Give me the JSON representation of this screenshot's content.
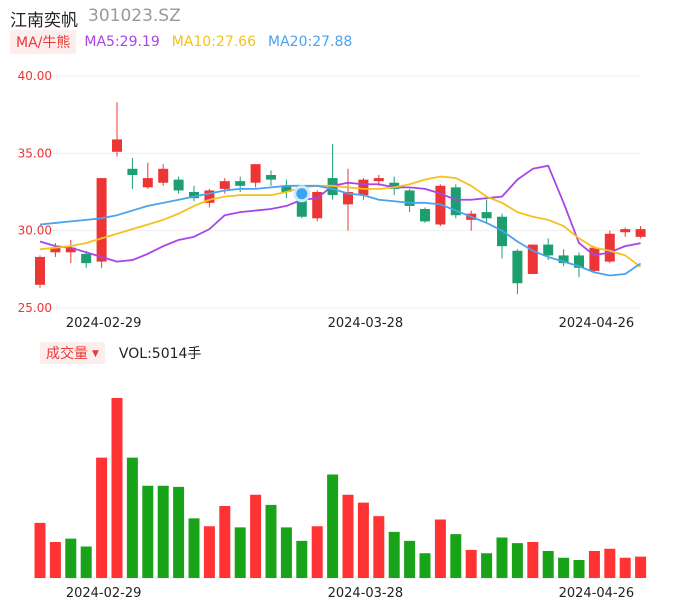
{
  "header": {
    "name": "江南奕帆",
    "code": "301023.SZ"
  },
  "ma_bar": {
    "button": "MA/牛熊",
    "ma5": "MA5:29.19",
    "ma10": "MA10:27.66",
    "ma20": "MA20:27.88"
  },
  "volume_bar": {
    "button": "成交量",
    "caret": "▼",
    "label": "VOL:5014手"
  },
  "colors": {
    "up": "#ee3535",
    "down": "#1d9e6f",
    "vol_up": "#ff3333",
    "vol_down": "#19a319",
    "ma5": "#a845e8",
    "ma10": "#f5c11a",
    "ma20": "#4aa3ee",
    "grid": "#eeeeee"
  },
  "chart_data": [
    {
      "type": "candlestick",
      "ylim": [
        25,
        40
      ],
      "yticks": [
        "40.00",
        "35.00",
        "30.00",
        "25.00"
      ],
      "x_tick_labels": [
        {
          "index": 4,
          "label": "2024-02-29"
        },
        {
          "index": 21,
          "label": "2024-03-28"
        },
        {
          "index": 36,
          "label": "2024-04-26"
        }
      ],
      "marker": {
        "index": 17,
        "icon": "bull-marker-icon"
      },
      "candles": [
        {
          "o": 26.5,
          "c": 28.3,
          "h": 28.4,
          "l": 26.3
        },
        {
          "o": 28.6,
          "c": 28.9,
          "h": 29.2,
          "l": 28.3
        },
        {
          "o": 28.6,
          "c": 28.9,
          "h": 29.4,
          "l": 27.9
        },
        {
          "o": 28.5,
          "c": 27.9,
          "h": 28.7,
          "l": 27.6
        },
        {
          "o": 28.0,
          "c": 33.4,
          "h": 33.4,
          "l": 27.6
        },
        {
          "o": 35.1,
          "c": 35.9,
          "h": 38.3,
          "l": 34.8
        },
        {
          "o": 34.0,
          "c": 33.6,
          "h": 34.7,
          "l": 32.7
        },
        {
          "o": 32.8,
          "c": 33.4,
          "h": 34.4,
          "l": 32.7
        },
        {
          "o": 33.1,
          "c": 34.0,
          "h": 34.3,
          "l": 32.9
        },
        {
          "o": 33.3,
          "c": 32.6,
          "h": 33.5,
          "l": 32.4
        },
        {
          "o": 32.5,
          "c": 32.1,
          "h": 32.9,
          "l": 31.9
        },
        {
          "o": 31.8,
          "c": 32.6,
          "h": 32.7,
          "l": 31.5
        },
        {
          "o": 32.7,
          "c": 33.2,
          "h": 33.4,
          "l": 32.4
        },
        {
          "o": 33.2,
          "c": 32.9,
          "h": 33.5,
          "l": 32.5
        },
        {
          "o": 33.1,
          "c": 34.3,
          "h": 34.3,
          "l": 32.8
        },
        {
          "o": 33.6,
          "c": 33.3,
          "h": 33.9,
          "l": 32.9
        },
        {
          "o": 32.9,
          "c": 32.5,
          "h": 33.3,
          "l": 32.1
        },
        {
          "o": 32.0,
          "c": 30.9,
          "h": 32.2,
          "l": 30.8
        },
        {
          "o": 30.8,
          "c": 32.5,
          "h": 32.6,
          "l": 30.6
        },
        {
          "o": 33.4,
          "c": 32.3,
          "h": 35.6,
          "l": 32.0
        },
        {
          "o": 31.7,
          "c": 32.5,
          "h": 34.0,
          "l": 30.0
        },
        {
          "o": 32.3,
          "c": 33.3,
          "h": 33.4,
          "l": 32.0
        },
        {
          "o": 33.2,
          "c": 33.4,
          "h": 33.6,
          "l": 32.9
        },
        {
          "o": 33.1,
          "c": 32.7,
          "h": 33.5,
          "l": 32.3
        },
        {
          "o": 32.6,
          "c": 31.6,
          "h": 32.7,
          "l": 31.2
        },
        {
          "o": 31.4,
          "c": 30.6,
          "h": 31.5,
          "l": 30.5
        },
        {
          "o": 30.4,
          "c": 32.9,
          "h": 33.0,
          "l": 30.3
        },
        {
          "o": 32.8,
          "c": 31.0,
          "h": 33.0,
          "l": 30.8
        },
        {
          "o": 30.7,
          "c": 31.1,
          "h": 31.3,
          "l": 30.0
        },
        {
          "o": 31.2,
          "c": 30.8,
          "h": 32.0,
          "l": 30.5
        },
        {
          "o": 30.9,
          "c": 29.0,
          "h": 31.1,
          "l": 28.2
        },
        {
          "o": 28.7,
          "c": 26.6,
          "h": 28.8,
          "l": 25.9
        },
        {
          "o": 27.2,
          "c": 29.1,
          "h": 29.1,
          "l": 27.2
        },
        {
          "o": 29.1,
          "c": 28.4,
          "h": 29.5,
          "l": 28.1
        },
        {
          "o": 28.4,
          "c": 27.9,
          "h": 28.8,
          "l": 27.7
        },
        {
          "o": 28.4,
          "c": 27.6,
          "h": 28.6,
          "l": 27.0
        },
        {
          "o": 27.4,
          "c": 28.9,
          "h": 29.0,
          "l": 27.3
        },
        {
          "o": 28.0,
          "c": 29.8,
          "h": 30.0,
          "l": 27.9
        },
        {
          "o": 29.9,
          "c": 30.1,
          "h": 30.2,
          "l": 29.6
        },
        {
          "o": 29.6,
          "c": 30.1,
          "h": 30.3,
          "l": 29.5
        }
      ],
      "series": [
        {
          "name": "MA5",
          "values": [
            29.3,
            29.0,
            28.9,
            28.6,
            28.3,
            28.0,
            28.1,
            28.5,
            29.0,
            29.4,
            29.6,
            30.1,
            31.0,
            31.2,
            31.3,
            31.4,
            31.6,
            32.0,
            32.1,
            32.9,
            33.1,
            33.0,
            33.0,
            32.8,
            32.8,
            32.7,
            32.4,
            32.0,
            32.0,
            32.1,
            32.2,
            33.3,
            34.0,
            34.2,
            31.8,
            29.2,
            28.4,
            28.6,
            29.0,
            29.19
          ]
        },
        {
          "name": "MA10",
          "values": [
            28.8,
            28.9,
            29.0,
            29.2,
            29.5,
            29.8,
            30.1,
            30.4,
            30.7,
            31.1,
            31.6,
            32.0,
            32.2,
            32.3,
            32.3,
            32.3,
            32.5,
            32.8,
            32.9,
            32.9,
            32.8,
            32.7,
            32.7,
            32.8,
            33.0,
            33.3,
            33.5,
            33.4,
            32.9,
            32.2,
            31.8,
            31.2,
            30.9,
            30.7,
            30.3,
            29.5,
            28.9,
            28.7,
            28.4,
            27.66
          ]
        },
        {
          "name": "MA20",
          "values": [
            30.4,
            30.5,
            30.6,
            30.7,
            30.8,
            31.0,
            31.3,
            31.6,
            31.8,
            32.0,
            32.2,
            32.4,
            32.6,
            32.7,
            32.7,
            32.8,
            32.9,
            32.9,
            32.9,
            32.7,
            32.4,
            32.3,
            32.0,
            31.9,
            31.8,
            31.8,
            31.7,
            31.3,
            30.9,
            30.5,
            30.0,
            29.3,
            28.7,
            28.3,
            28.0,
            27.7,
            27.3,
            27.1,
            27.2,
            27.88
          ]
        }
      ]
    },
    {
      "type": "bar",
      "name": "volume",
      "x_tick_labels": [
        {
          "index": 4,
          "label": "2024-02-29"
        },
        {
          "index": 21,
          "label": "2024-03-28"
        },
        {
          "index": 36,
          "label": "2024-04-26"
        }
      ],
      "values": [
        2.45,
        1.6,
        1.75,
        1.4,
        5.35,
        8.0,
        5.35,
        4.1,
        4.1,
        4.05,
        2.65,
        2.3,
        3.2,
        2.25,
        3.7,
        3.25,
        2.25,
        1.65,
        2.3,
        4.6,
        3.7,
        3.35,
        2.75,
        2.05,
        1.65,
        1.1,
        2.6,
        1.95,
        1.25,
        1.1,
        1.8,
        1.55,
        1.6,
        1.2,
        0.9,
        0.8,
        1.2,
        1.3,
        0.9,
        0.95
      ],
      "up": [
        true,
        true,
        false,
        false,
        true,
        true,
        false,
        false,
        false,
        false,
        false,
        true,
        true,
        false,
        true,
        false,
        false,
        false,
        true,
        false,
        true,
        true,
        true,
        false,
        false,
        false,
        true,
        false,
        true,
        false,
        false,
        false,
        true,
        false,
        false,
        false,
        true,
        true,
        true,
        true
      ]
    }
  ]
}
